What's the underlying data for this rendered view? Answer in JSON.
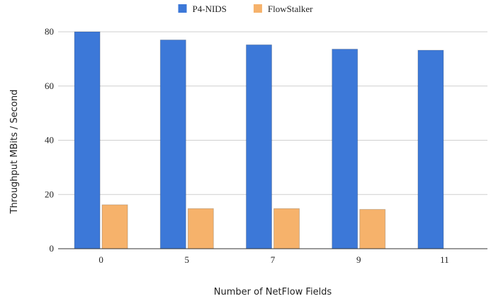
{
  "chart_data": {
    "type": "bar",
    "xlabel": "Number of NetFlow Fields",
    "ylabel": "Throughput MBits / Second",
    "categories": [
      "0",
      "5",
      "7",
      "9",
      "11"
    ],
    "series": [
      {
        "name": "P4-NIDS",
        "color": "#3c78d8",
        "values": [
          80,
          77,
          75.2,
          73.6,
          73.2
        ]
      },
      {
        "name": "FlowStalker",
        "color": "#f6b26b",
        "values": [
          16.2,
          14.8,
          14.8,
          14.5,
          null
        ]
      }
    ],
    "ylim": [
      0,
      80
    ],
    "yticks": [
      0,
      20,
      40,
      60,
      80
    ],
    "grid": true,
    "legend_position": "top-center"
  }
}
